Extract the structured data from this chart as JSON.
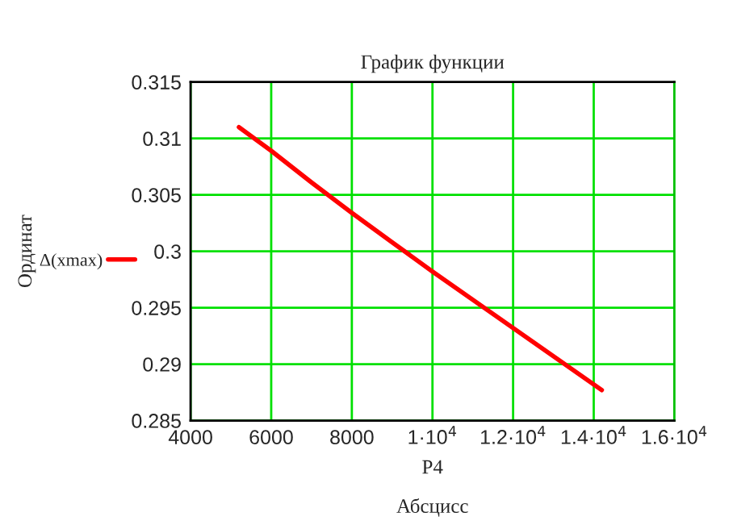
{
  "chart_data": {
    "type": "line",
    "title": "График функции",
    "xlabel": "P4",
    "ylabel": "Ординат",
    "annotations": [
      "Абсцисс"
    ],
    "series": [
      {
        "name": "Δ(xmax)",
        "color": "#ff0000",
        "x": [
          5200,
          6000,
          7000,
          8000,
          9000,
          10000,
          11000,
          12000,
          13000,
          14200
        ],
        "values": [
          0.311,
          0.3089,
          0.3061,
          0.3034,
          0.3008,
          0.2982,
          0.2957,
          0.2932,
          0.2907,
          0.2877
        ]
      }
    ],
    "xlim": [
      4000,
      16000
    ],
    "ylim": [
      0.285,
      0.315
    ],
    "xticks": [
      4000,
      6000,
      8000,
      {
        "value": 10000,
        "label": "1·10$^{4}$"
      },
      {
        "value": 12000,
        "label": "1.2·10$^{4}$"
      },
      {
        "value": 14000,
        "label": "1.4·10$^{4}$"
      },
      {
        "value": 16000,
        "label": "1.6·10$^{4}$"
      }
    ],
    "yticks": [
      0.285,
      0.29,
      0.295,
      0.3,
      0.305,
      0.31,
      0.315
    ],
    "grid": true,
    "legend": "left",
    "marker": "none",
    "line_style": "solid"
  }
}
